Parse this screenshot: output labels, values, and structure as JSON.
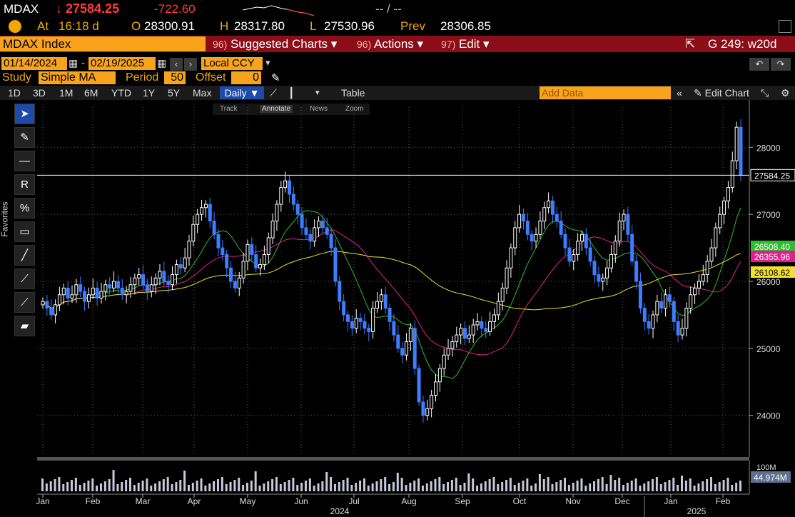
{
  "ticker": {
    "symbol": "MDAX",
    "last": "↓ 27584.25",
    "change": "-722.60",
    "extra": "-- / --"
  },
  "quote": {
    "at_label": "At",
    "time": "16:18 d",
    "open_label": "O",
    "open": "28300.91",
    "high_label": "H",
    "high": "28317.80",
    "low_label": "L",
    "low": "27530.96",
    "prev_label": "Prev",
    "prev": "28306.85"
  },
  "menu": {
    "index": "MDAX Index",
    "suggested_num": "96)",
    "suggested": "Suggested Charts",
    "actions_num": "96)",
    "actions": "Actions",
    "edit_num": "97)",
    "edit": "Edit",
    "g_label": "G 249: w20d"
  },
  "dates": {
    "start": "01/14/2024",
    "end": "02/19/2025",
    "currency": "Local CCY"
  },
  "study": {
    "label": "Study",
    "value": "Simple MA",
    "period_label": "Period",
    "period": "50",
    "offset_label": "Offset",
    "offset": "0"
  },
  "range": {
    "items": [
      "1D",
      "3D",
      "1M",
      "6M",
      "YTD",
      "1Y",
      "5Y",
      "Max"
    ],
    "interval": "Daily",
    "table": "Table",
    "add_data_placeholder": "Add Data",
    "edit_chart": "Edit Chart"
  },
  "annotation_bar": {
    "track": "Track",
    "annotate": "Annotate",
    "news": "News",
    "zoom": "Zoom"
  },
  "favorites": "Favorites",
  "chart_data": {
    "type": "candlestick",
    "ylim": [
      23400,
      28600
    ],
    "yticks": [
      "28000",
      "27000",
      "26000",
      "25000",
      "24000"
    ],
    "months": [
      "Jan",
      "Feb",
      "Mar",
      "Apr",
      "May",
      "Jun",
      "Jul",
      "Aug",
      "Sep",
      "Oct",
      "Nov",
      "Dec",
      "Jan",
      "Feb"
    ],
    "years": [
      "2024",
      "2025"
    ],
    "last_price": "27584.25",
    "ma_labels": [
      {
        "value": "26508.40",
        "color": "#2bbf2b"
      },
      {
        "value": "26355.96",
        "color": "#e0208a"
      },
      {
        "value": "26108.62",
        "color": "#f0e030"
      }
    ],
    "close": [
      25700,
      25600,
      25500,
      25650,
      25800,
      25900,
      25750,
      25800,
      25950,
      25850,
      25700,
      25800,
      25900,
      25750,
      25850,
      25950,
      25900,
      26000,
      25900,
      25800,
      25850,
      25950,
      26050,
      26100,
      25950,
      25850,
      25950,
      26050,
      26150,
      26000,
      25950,
      26100,
      26250,
      26200,
      26350,
      26600,
      26850,
      27000,
      27100,
      27150,
      26900,
      26700,
      26500,
      26400,
      26200,
      26000,
      25900,
      26050,
      26300,
      26550,
      26400,
      26200,
      26250,
      26400,
      26650,
      26900,
      27150,
      27400,
      27500,
      27300,
      27150,
      27000,
      26800,
      26700,
      26600,
      26800,
      26900,
      26800,
      26700,
      26500,
      26000,
      25700,
      25500,
      25400,
      25300,
      25450,
      25400,
      25300,
      25250,
      25600,
      25700,
      25800,
      25600,
      25400,
      25200,
      25000,
      24900,
      25100,
      25300,
      24700,
      24200,
      24000,
      24100,
      24300,
      24500,
      24700,
      24900,
      25000,
      25100,
      25200,
      25300,
      25150,
      25200,
      25350,
      25400,
      25300,
      25250,
      25400,
      25500,
      25700,
      25900,
      26200,
      26500,
      26800,
      27000,
      26900,
      26700,
      26600,
      26700,
      26900,
      27100,
      27200,
      27000,
      26900,
      26700,
      26500,
      26300,
      26400,
      26600,
      26700,
      26500,
      26300,
      26100,
      26000,
      26050,
      26200,
      26400,
      26600,
      26900,
      27000,
      26700,
      26300,
      26000,
      25600,
      25400,
      25300,
      25500,
      25700,
      25600,
      25800,
      25700,
      25400,
      25200,
      25300,
      25600,
      25800,
      25900,
      26000,
      26100,
      26300,
      26500,
      26800,
      27000,
      27200,
      27400,
      27800,
      28300,
      27584
    ]
  }
}
